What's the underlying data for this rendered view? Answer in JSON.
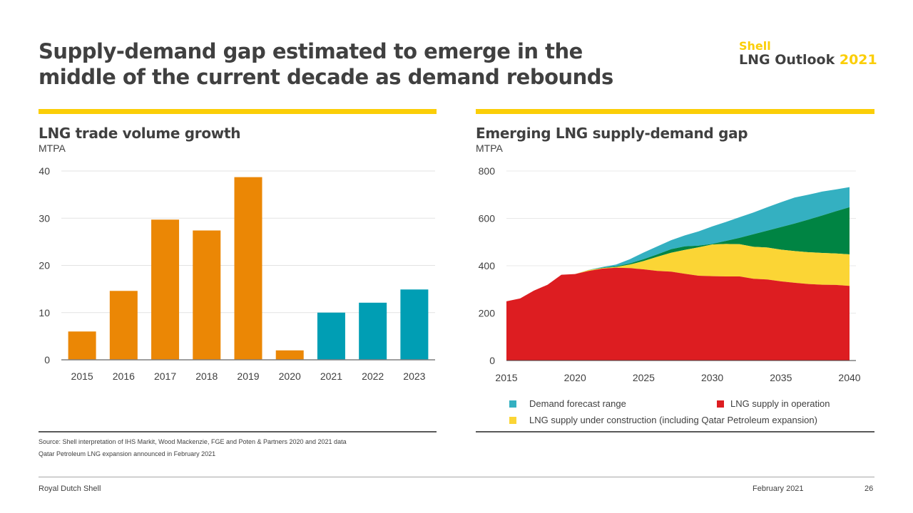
{
  "header": {
    "title_line1": "Supply-demand gap estimated to emerge in the",
    "title_line2": "middle of the current decade as demand rebounds",
    "brand_shell": "Shell",
    "brand_outlook": "LNG Outlook",
    "brand_year": "2021"
  },
  "colors": {
    "shell_yellow": "#fbce07",
    "orange": "#eb8705",
    "teal": "#009eb4",
    "demand_teal": "#34b0c1",
    "red": "#dd1d21",
    "construction_yellow": "#fbd535",
    "green": "#008443",
    "text": "#404040"
  },
  "left_panel": {
    "title": "LNG trade volume growth",
    "unit": "MTPA"
  },
  "right_panel": {
    "title": "Emerging LNG supply-demand gap",
    "unit": "MTPA"
  },
  "chart_data": [
    {
      "type": "bar",
      "title": "LNG trade volume growth",
      "ylabel": "MTPA",
      "xlabel": "",
      "categories": [
        "2015",
        "2016",
        "2017",
        "2018",
        "2019",
        "2020",
        "2021",
        "2022",
        "2023"
      ],
      "values": [
        6,
        14.6,
        29.7,
        27.4,
        38.7,
        2,
        10,
        12.1,
        14.9
      ],
      "bar_kind": [
        "actual",
        "actual",
        "actual",
        "actual",
        "actual",
        "actual",
        "forecast",
        "forecast",
        "forecast"
      ],
      "ylim": [
        0,
        40
      ],
      "yticks": [
        0,
        10,
        20,
        30,
        40
      ],
      "grid": true
    },
    {
      "type": "area",
      "title": "Emerging LNG supply-demand gap",
      "ylabel": "MTPA",
      "xlabel": "",
      "xlim": [
        2015,
        2040
      ],
      "ylim": [
        0,
        800
      ],
      "xticks": [
        2015,
        2020,
        2025,
        2030,
        2035,
        2040
      ],
      "yticks": [
        0,
        200,
        400,
        600,
        800
      ],
      "grid": true,
      "x": [
        2015,
        2016,
        2017,
        2018,
        2019,
        2020,
        2021,
        2022,
        2023,
        2024,
        2025,
        2026,
        2027,
        2028,
        2029,
        2030,
        2031,
        2032,
        2033,
        2034,
        2035,
        2036,
        2037,
        2038,
        2039,
        2040
      ],
      "series": [
        {
          "name": "LNG supply in operation",
          "kind": "stack_top",
          "values": [
            250,
            262,
            295,
            320,
            362,
            365,
            378,
            388,
            392,
            390,
            385,
            378,
            375,
            366,
            358,
            356,
            355,
            355,
            345,
            342,
            334,
            328,
            323,
            320,
            319,
            315
          ]
        },
        {
          "name": "LNG supply under construction (including Qatar Petroleum expansion)",
          "kind": "cumulative_top",
          "values": [
            250,
            262,
            295,
            320,
            362,
            365,
            382,
            390,
            395,
            405,
            420,
            438,
            455,
            467,
            478,
            490,
            492,
            491,
            480,
            477,
            468,
            462,
            457,
            454,
            452,
            448
          ]
        },
        {
          "name": "Demand forecast range (low)",
          "kind": "range_low",
          "values": [
            250,
            262,
            295,
            320,
            362,
            365,
            382,
            392,
            398,
            410,
            428,
            448,
            470,
            482,
            485,
            492,
            505,
            518,
            533,
            548,
            563,
            578,
            595,
            612,
            630,
            647
          ]
        },
        {
          "name": "Demand forecast range (high)",
          "kind": "range_high",
          "values": [
            250,
            262,
            295,
            320,
            362,
            365,
            383,
            395,
            405,
            428,
            456,
            482,
            508,
            528,
            545,
            566,
            585,
            605,
            625,
            647,
            668,
            688,
            700,
            713,
            722,
            732
          ]
        }
      ],
      "legend": [
        {
          "label": "Demand forecast range",
          "color": "#34b0c1"
        },
        {
          "label": "LNG supply in operation",
          "color": "#dd1d21"
        },
        {
          "label": "LNG supply under construction (including Qatar Petroleum expansion)",
          "color": "#fbd535"
        }
      ],
      "legend_position": "bottom"
    }
  ],
  "source": {
    "line1": "Source: Shell interpretation of IHS Markit, Wood Mackenzie, FGE and Poten & Partners 2020 and 2021 data",
    "line2": "Qatar Petroleum LNG expansion announced in February 2021"
  },
  "footer": {
    "company": "Royal Dutch Shell",
    "date": "February 2021",
    "page": "26"
  }
}
